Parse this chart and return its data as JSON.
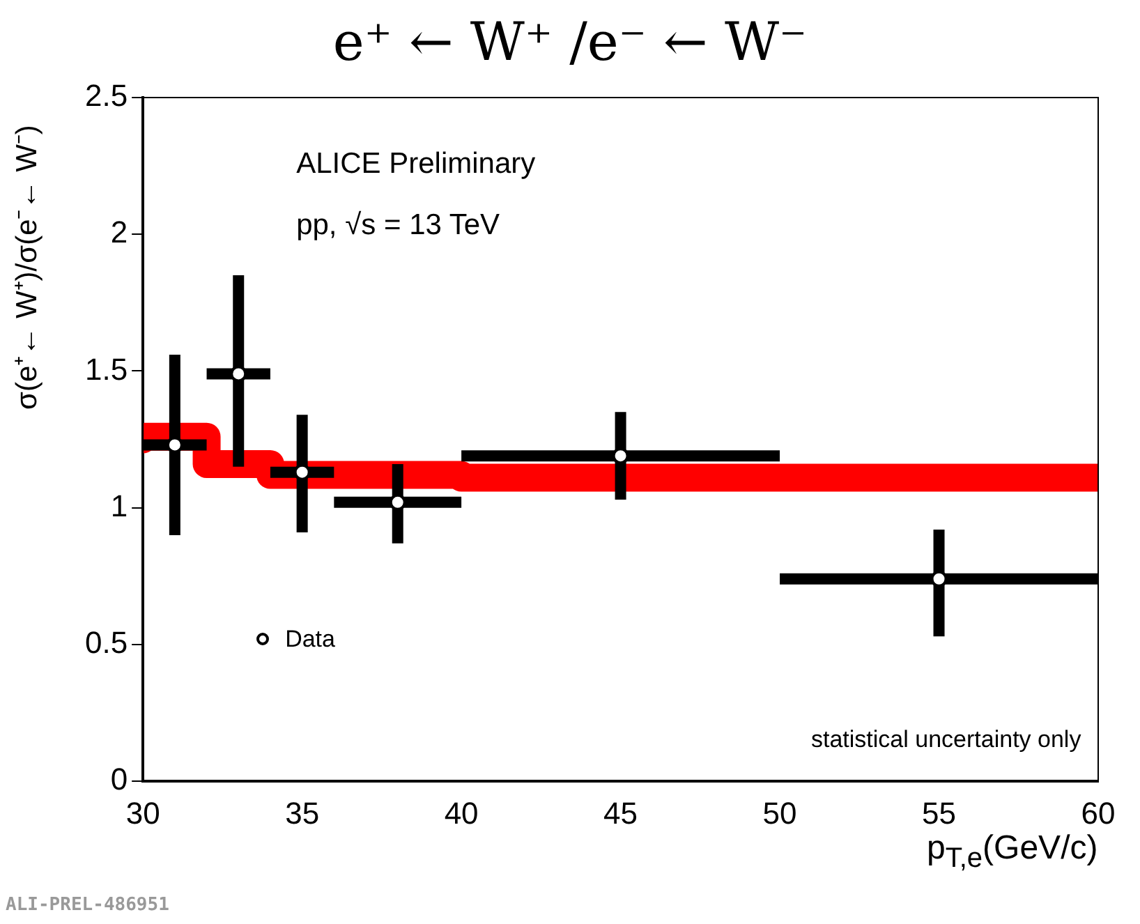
{
  "chart_data": {
    "type": "scatter",
    "title": "e⁺ ← W⁺ /e⁻ ← W⁻",
    "xlabel": "p$_{T,e}$(GeV/c)",
    "ylabel": "σ(e⁺← W⁺)/σ(e⁻← W⁻)",
    "xlim": [
      30,
      60
    ],
    "xticks": [
      30,
      35,
      40,
      45,
      50,
      55,
      60
    ],
    "ylim": [
      0,
      2.5
    ],
    "yticks": [
      0,
      0.5,
      1,
      1.5,
      2,
      2.5
    ],
    "grid": false,
    "legend": "bottom left",
    "annotations": [
      "ALICE Preliminary",
      "pp, √s = 13 TeV",
      "statistical uncertainty only",
      "ALI-PREL-486951"
    ],
    "series": [
      {
        "name": "Data",
        "type": "scatter",
        "color": "#000000",
        "marker": "circle",
        "x": [
          31,
          33,
          35,
          38,
          45,
          55
        ],
        "values": [
          1.23,
          1.49,
          1.13,
          1.02,
          1.19,
          0.74
        ],
        "errors": [
          [
            0.9,
            1.56
          ],
          [
            1.15,
            1.85
          ],
          [
            0.91,
            1.34
          ],
          [
            0.87,
            1.16
          ],
          [
            1.03,
            1.35
          ],
          [
            0.53,
            0.92
          ]
        ],
        "xerrors": [
          1,
          1,
          1,
          2,
          5,
          5
        ]
      },
      {
        "type": "step",
        "color": "#ff0000",
        "x": [
          30,
          32,
          34,
          36,
          40,
          50,
          60
        ],
        "values": [
          1.25,
          1.26,
          1.16,
          1.12,
          1.12,
          1.11,
          1.11
        ]
      }
    ]
  }
}
